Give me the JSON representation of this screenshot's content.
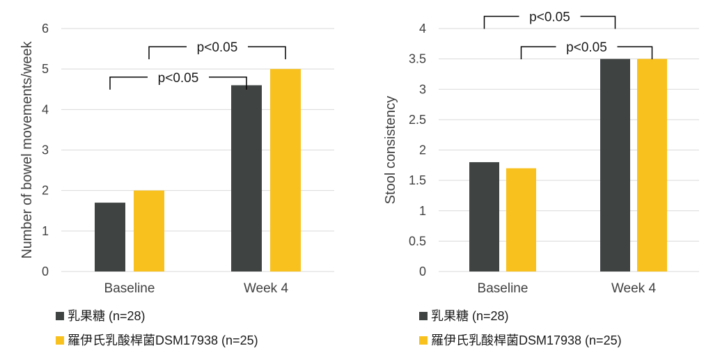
{
  "colors": {
    "series1": "#3f4443",
    "series2": "#f9c11d",
    "grid": "#d9d9d9",
    "bracket": "#000000"
  },
  "chart_data": [
    {
      "type": "bar",
      "title": "",
      "xlabel": "",
      "ylabel": "Number of bowel movements/week",
      "ylim": [
        0,
        6
      ],
      "yticks": [
        0,
        1,
        2,
        3,
        4,
        5,
        6
      ],
      "ytick_labels": [
        "0",
        "1",
        "2",
        "3",
        "4",
        "5",
        "6"
      ],
      "categories": [
        "Baseline",
        "Week 4"
      ],
      "series": [
        {
          "name": "乳果糖  (n=28)",
          "values": [
            1.7,
            4.6
          ]
        },
        {
          "name": "羅伊氏乳酸桿菌DSM17938 (n=25)",
          "values": [
            2.0,
            5.0
          ]
        }
      ],
      "annotations": [
        {
          "label": "p<0.05",
          "from": [
            0,
            0
          ],
          "to": [
            1,
            0
          ],
          "level": 4.8
        },
        {
          "label": "p<0.05",
          "from": [
            0,
            1
          ],
          "to": [
            1,
            1
          ],
          "level": 5.55
        }
      ],
      "legend": {
        "position": "bottom-left"
      }
    },
    {
      "type": "bar",
      "title": "",
      "xlabel": "",
      "ylabel": "Stool consistency",
      "ylim": [
        0,
        4
      ],
      "yticks": [
        0,
        0.5,
        1,
        1.5,
        2,
        2.5,
        3,
        3.5,
        4
      ],
      "ytick_labels": [
        "0",
        "0.5",
        "1",
        "1.5",
        "2",
        "2.5",
        "3",
        "3.5",
        "4"
      ],
      "categories": [
        "Baseline",
        "Week 4"
      ],
      "series": [
        {
          "name": "乳果糖  (n=28)",
          "values": [
            1.8,
            3.5
          ]
        },
        {
          "name": "羅伊氏乳酸桿菌DSM17938 (n=25)",
          "values": [
            1.7,
            3.5
          ]
        }
      ],
      "annotations": [
        {
          "label": "p<0.05",
          "from": [
            0,
            0
          ],
          "to": [
            1,
            0
          ],
          "level": 4.2
        },
        {
          "label": "p<0.05",
          "from": [
            0,
            1
          ],
          "to": [
            1,
            1
          ],
          "level": 3.7
        }
      ],
      "legend": {
        "position": "bottom-left"
      }
    }
  ]
}
